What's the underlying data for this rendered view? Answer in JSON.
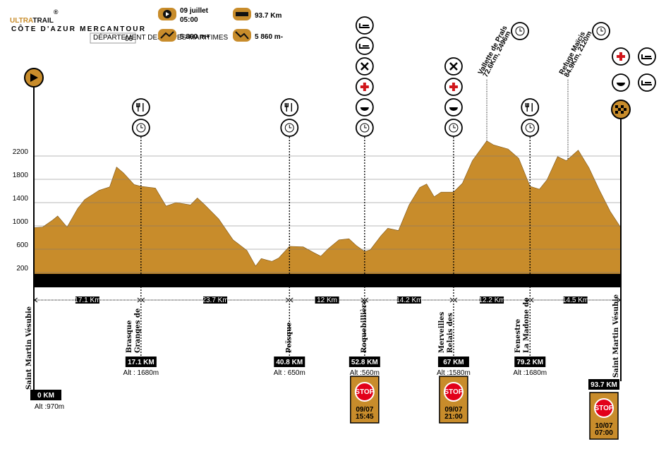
{
  "chart_data": {
    "type": "area",
    "header": {
      "logo": "ULTRA",
      "logo_b": "TRAIL",
      "logo_mark": "®",
      "logo_sub": "CÔTE D'AZUR MERCANTOUR",
      "dept": "DÉPARTEMENT DES ALPES-MARITIMES",
      "dept_no": "06",
      "date": "09 juillet",
      "time": "05:00",
      "distance": "93.7 Km",
      "gain": "5 860 m+",
      "loss": "5 860 m-"
    },
    "color": "#c88c2b",
    "xlim": [
      0,
      93.7
    ],
    "ylim": [
      0,
      2600
    ],
    "yticks": [
      200,
      600,
      1000,
      1400,
      1800,
      2200
    ],
    "grid": true,
    "x": [
      0,
      1.4,
      3.0,
      3.8,
      5.3,
      7.0,
      8.1,
      10.4,
      12.1,
      13.2,
      14.3,
      16.0,
      17.1,
      19.4,
      21.1,
      22.7,
      25.0,
      26.1,
      27.3,
      29.5,
      31.8,
      34.0,
      35.4,
      36.3,
      38.0,
      39.1,
      40.8,
      43.0,
      44.7,
      45.8,
      47.0,
      48.7,
      50.3,
      51.5,
      52.8,
      53.7,
      55.4,
      56.5,
      58.2,
      59.9,
      61.6,
      62.7,
      63.9,
      65.0,
      67.0,
      68.4,
      70.0,
      72.3,
      73.4,
      75.7,
      77.4,
      79.2,
      80.7,
      81.9,
      83.6,
      85.0,
      86.9,
      88.6,
      90.3,
      92.0,
      93.7
    ],
    "values": [
      970,
      980,
      1100,
      1170,
      980,
      1300,
      1450,
      1610,
      1670,
      2010,
      1910,
      1710,
      1680,
      1650,
      1340,
      1400,
      1360,
      1480,
      1360,
      1120,
      760,
      580,
      310,
      440,
      390,
      450,
      650,
      640,
      540,
      480,
      610,
      760,
      780,
      660,
      560,
      590,
      830,
      960,
      920,
      1360,
      1660,
      1720,
      1500,
      1580,
      1580,
      1730,
      2120,
      2460,
      2390,
      2320,
      2160,
      1680,
      1630,
      1790,
      2190,
      2120,
      2300,
      2000,
      1610,
      1250,
      970
    ],
    "stations": [
      {
        "name": [
          "Saint Martin Vésubie"
        ],
        "distance": 0,
        "distance_label": "0 KM",
        "alt": "Alt :970m"
      },
      {
        "name": [
          "Granges de",
          "Brasque"
        ],
        "distance": 17.1,
        "distance_label": "17.1 KM",
        "alt": "Alt : 1680m"
      },
      {
        "name": [
          "Peïsque"
        ],
        "distance": 40.8,
        "distance_label": "40.8 KM",
        "alt": "Alt : 650m"
      },
      {
        "name": [
          "Roquebillière"
        ],
        "distance": 52.8,
        "distance_label": "52.8 KM",
        "alt": "Alt :560m",
        "stop": [
          "09/07",
          "15:45"
        ]
      },
      {
        "name": [
          "Relais des",
          "Merveilles"
        ],
        "distance": 67,
        "distance_label": "67 KM",
        "alt": "Alt :1580m",
        "stop": [
          "09/07",
          "21:00"
        ]
      },
      {
        "name": [
          "La Madone de",
          "Fenestre"
        ],
        "distance": 79.2,
        "distance_label": "79.2 KM",
        "alt": "Alt :1680m"
      },
      {
        "name": [
          "Saint Martin Vésubie"
        ],
        "distance": 93.7,
        "distance_label": "93.7 KM",
        "stop": [
          "10/07",
          "07:00"
        ]
      }
    ],
    "stop_sign": "STOP",
    "segments": [
      "17.1 Km",
      "23.7 Km",
      "12 Km",
      "14.2 Km",
      "12.2 Km",
      "14.5 Km"
    ],
    "annotations": [
      {
        "lines": [
          "Vallette de Prals",
          "72.6Km, 2496m"
        ]
      },
      {
        "lines": [
          "Refuge Maïcis",
          "84.9Km, 2120m"
        ]
      }
    ]
  }
}
